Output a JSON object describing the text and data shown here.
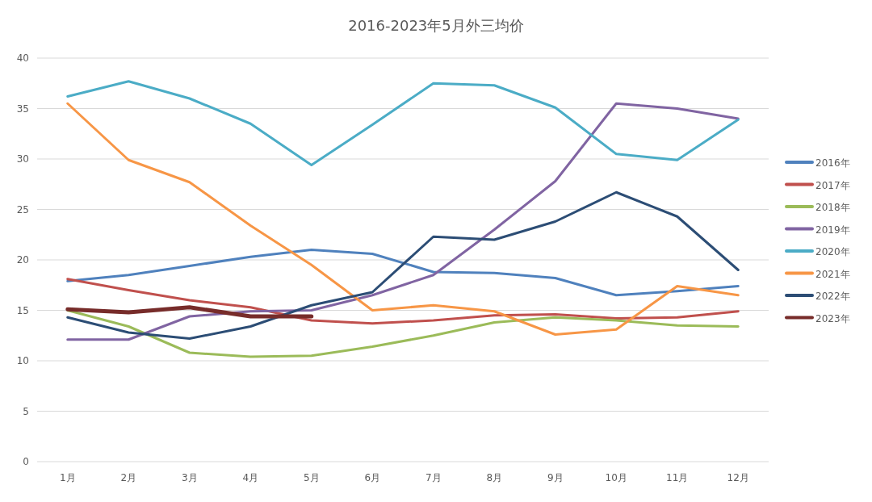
{
  "chart_data": {
    "type": "line",
    "title": "2016-2023年5月外三均价",
    "categories": [
      "1月",
      "2月",
      "3月",
      "4月",
      "5月",
      "6月",
      "7月",
      "8月",
      "9月",
      "10月",
      "11月",
      "12月"
    ],
    "ylim": [
      0,
      40
    ],
    "yticks": [
      0,
      5,
      10,
      15,
      20,
      25,
      30,
      35,
      40
    ],
    "grid": "y",
    "legend": "right",
    "marker": "none",
    "line_style": "solid",
    "series": [
      {
        "name": "2016年",
        "color": "#4f81bd",
        "values": [
          17.9,
          18.5,
          19.4,
          20.3,
          21.0,
          20.6,
          18.8,
          18.7,
          18.2,
          16.5,
          16.9,
          17.4
        ]
      },
      {
        "name": "2017年",
        "color": "#c0504d",
        "values": [
          18.1,
          17.0,
          16.0,
          15.3,
          14.0,
          13.7,
          14.0,
          14.5,
          14.6,
          14.2,
          14.3,
          14.9
        ]
      },
      {
        "name": "2018年",
        "color": "#9bbb59",
        "values": [
          15.0,
          13.4,
          10.8,
          10.4,
          10.5,
          11.4,
          12.5,
          13.8,
          14.3,
          14.0,
          13.5,
          13.4
        ]
      },
      {
        "name": "2019年",
        "color": "#8064a2",
        "values": [
          12.1,
          12.1,
          14.4,
          14.9,
          15.0,
          16.5,
          18.5,
          23.0,
          27.8,
          35.5,
          35.0,
          34.0
        ]
      },
      {
        "name": "2020年",
        "color": "#4bacc6",
        "values": [
          36.2,
          37.7,
          36.0,
          33.5,
          29.4,
          33.4,
          37.5,
          37.3,
          35.1,
          30.5,
          29.9,
          33.9
        ]
      },
      {
        "name": "2021年",
        "color": "#f79646",
        "values": [
          35.5,
          29.9,
          27.7,
          23.4,
          19.5,
          15.0,
          15.5,
          14.9,
          12.6,
          13.1,
          17.4,
          16.5
        ]
      },
      {
        "name": "2022年",
        "color": "#2c4d75",
        "values": [
          14.3,
          12.8,
          12.2,
          13.4,
          15.5,
          16.8,
          22.3,
          22.0,
          23.8,
          26.7,
          24.3,
          19.0
        ]
      },
      {
        "name": "2023年",
        "color": "#772c2a",
        "values": [
          15.1,
          14.8,
          15.3,
          14.4,
          14.4,
          null,
          null,
          null,
          null,
          null,
          null,
          null
        ]
      }
    ]
  }
}
